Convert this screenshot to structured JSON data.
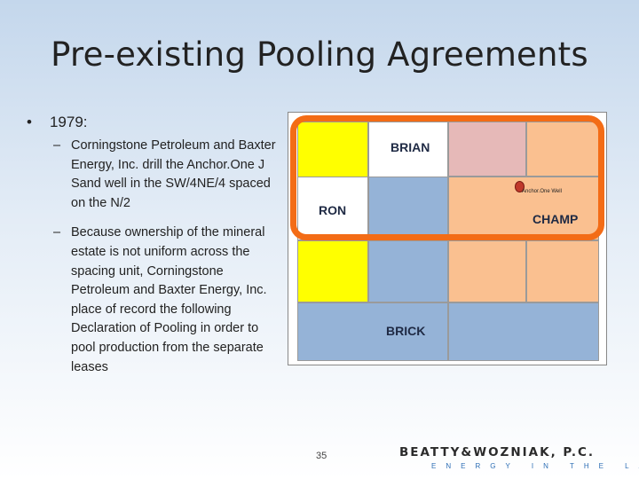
{
  "slide": {
    "title": "Pre-existing Pooling Agreements",
    "bullet": {
      "marker": "•",
      "text": "1979:"
    },
    "subbullets": [
      {
        "marker": "–",
        "text": "Corningstone Petroleum and Baxter Energy, Inc. drill the Anchor.One J Sand well in the SW/4NE/4 spaced on the N/2"
      },
      {
        "marker": "–",
        "text": "Because ownership of the mineral estate is not uniform across the spacing unit, Corningstone Petroleum and Baxter Energy, Inc. place of record the following Declaration of Pooling in order to pool production from the separate leases"
      }
    ],
    "page_number": "35"
  },
  "map": {
    "labels": {
      "brian": "BRIAN",
      "ron": "RON",
      "champ": "CHAMP",
      "brick": "BRICK"
    },
    "well_label": "Anchor.One Well",
    "colors": {
      "ron": "#ffff00",
      "brian": "#e6b9b8",
      "champ": "#fac090",
      "brick": "#95b3d7",
      "outline": "#f36c16",
      "well": "#c0392b"
    }
  },
  "logo": {
    "name": "BEATTY&WOZNIAK, P.C.",
    "tagline": "ENERGY IN THE LAW"
  }
}
